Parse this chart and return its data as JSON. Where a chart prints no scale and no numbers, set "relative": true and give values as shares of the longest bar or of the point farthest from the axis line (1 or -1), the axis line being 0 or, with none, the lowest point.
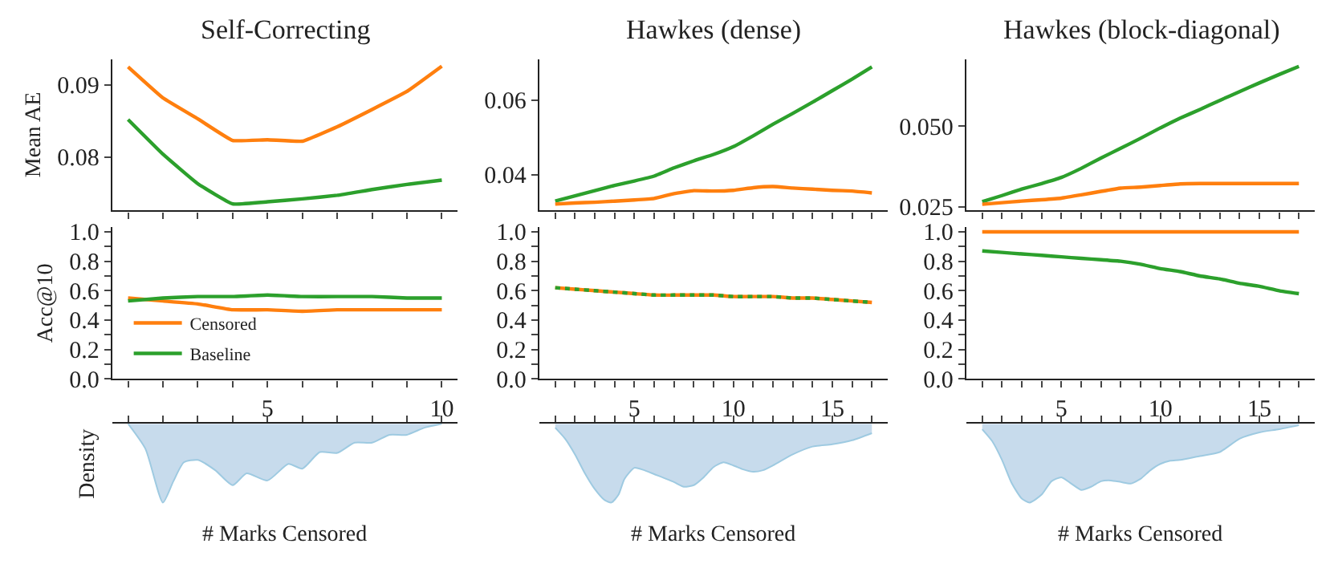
{
  "chart_data": [
    {
      "type": "line",
      "title": "Self-Correcting",
      "ylabel": "Mean AE",
      "x": [
        1,
        2,
        3,
        4,
        5,
        6,
        7,
        8,
        9,
        10
      ],
      "xlim": [
        0.55,
        10.45
      ],
      "xticks": [
        {
          "value": 1,
          "label": null
        },
        {
          "value": 2,
          "label": null
        },
        {
          "value": 3,
          "label": null
        },
        {
          "value": 4,
          "label": null
        },
        5,
        {
          "value": 6,
          "label": null
        },
        {
          "value": 7,
          "label": null
        },
        {
          "value": 8,
          "label": null
        },
        {
          "value": 9,
          "label": null
        },
        10
      ],
      "ylim": [
        0.0726,
        0.0936
      ],
      "yticks": [
        0.08,
        0.09
      ],
      "tick_labels": "y",
      "grid": false,
      "marker": "none",
      "series": [
        {
          "color": "#ff7f0e",
          "values": [
            0.0925,
            0.0882,
            0.0853,
            0.0823,
            0.0824,
            0.0822,
            0.0842,
            0.0866,
            0.0891,
            0.0926
          ]
        },
        {
          "color": "#2ca02c",
          "values": [
            0.0852,
            0.0804,
            0.0763,
            0.0735,
            0.0738,
            0.0742,
            0.0747,
            0.0755,
            0.0762,
            0.0768
          ]
        }
      ]
    },
    {
      "type": "line",
      "title": "Hawkes (dense)",
      "x": [
        1,
        2,
        3,
        4,
        5,
        6,
        7,
        8,
        9,
        10,
        11,
        12,
        13,
        14,
        15,
        16,
        17
      ],
      "xlim": [
        0.2,
        17.8
      ],
      "xticks": [
        {
          "value": 1,
          "label": null
        },
        {
          "value": 2,
          "label": null
        },
        {
          "value": 3,
          "label": null
        },
        {
          "value": 4,
          "label": null
        },
        5,
        {
          "value": 6,
          "label": null
        },
        {
          "value": 7,
          "label": null
        },
        {
          "value": 8,
          "label": null
        },
        {
          "value": 9,
          "label": null
        },
        10,
        {
          "value": 11,
          "label": null
        },
        {
          "value": 12,
          "label": null
        },
        {
          "value": 13,
          "label": null
        },
        {
          "value": 14,
          "label": null
        },
        15,
        {
          "value": 16,
          "label": null
        },
        {
          "value": 17,
          "label": null
        }
      ],
      "ylim": [
        0.0304,
        0.071
      ],
      "yticks": [
        0.04,
        0.06
      ],
      "tick_labels": "y",
      "grid": false,
      "marker": "none",
      "series": [
        {
          "color": "#2ca02c",
          "values": [
            0.0329,
            0.0343,
            0.0357,
            0.0371,
            0.0383,
            0.0396,
            0.0418,
            0.0437,
            0.0454,
            0.0475,
            0.0504,
            0.0535,
            0.0564,
            0.0594,
            0.0625,
            0.0656,
            0.0689
          ]
        },
        {
          "color": "#ff7f0e",
          "values": [
            0.0321,
            0.0324,
            0.0326,
            0.0329,
            0.0332,
            0.0336,
            0.0349,
            0.0357,
            0.0356,
            0.0358,
            0.0365,
            0.0368,
            0.0364,
            0.0361,
            0.0358,
            0.0356,
            0.0351
          ]
        }
      ]
    },
    {
      "type": "line",
      "title": "Hawkes (block-diagonal)",
      "x": [
        1,
        2,
        3,
        4,
        5,
        6,
        7,
        8,
        9,
        10,
        11,
        12,
        13,
        14,
        15,
        16,
        17
      ],
      "xlim": [
        0.2,
        17.8
      ],
      "xticks": [
        {
          "value": 1,
          "label": null
        },
        {
          "value": 2,
          "label": null
        },
        {
          "value": 3,
          "label": null
        },
        {
          "value": 4,
          "label": null
        },
        5,
        {
          "value": 6,
          "label": null
        },
        {
          "value": 7,
          "label": null
        },
        {
          "value": 8,
          "label": null
        },
        {
          "value": 9,
          "label": null
        },
        10,
        {
          "value": 11,
          "label": null
        },
        {
          "value": 12,
          "label": null
        },
        {
          "value": 13,
          "label": null
        },
        {
          "value": 14,
          "label": null
        },
        15,
        {
          "value": 16,
          "label": null
        },
        {
          "value": 17,
          "label": null
        }
      ],
      "ylim": [
        0.0239,
        0.0707
      ],
      "yticks": [
        {
          "value": 0.025,
          "label": "0.025"
        },
        {
          "value": 0.05,
          "label": "0.050"
        }
      ],
      "tick_labels": "y",
      "grid": false,
      "marker": "none",
      "series": [
        {
          "color": "#2ca02c",
          "values": [
            0.0266,
            0.0285,
            0.0305,
            0.0322,
            0.0341,
            0.0369,
            0.0401,
            0.0431,
            0.0462,
            0.0494,
            0.0524,
            0.0551,
            0.0579,
            0.0606,
            0.0633,
            0.0659,
            0.0684
          ]
        },
        {
          "color": "#ff7f0e",
          "values": [
            0.0258,
            0.0263,
            0.0268,
            0.0272,
            0.0277,
            0.0287,
            0.0298,
            0.0308,
            0.0311,
            0.0316,
            0.0321,
            0.0322,
            0.0322,
            0.0322,
            0.0322,
            0.0322,
            0.0322
          ]
        }
      ]
    },
    {
      "type": "line",
      "ylabel": "Acc@10",
      "x": [
        1,
        2,
        3,
        4,
        5,
        6,
        7,
        8,
        9,
        10
      ],
      "xlim": [
        0.55,
        10.45
      ],
      "xticks": [
        {
          "value": 1,
          "label": null
        },
        {
          "value": 2,
          "label": null
        },
        {
          "value": 3,
          "label": null
        },
        {
          "value": 4,
          "label": null
        },
        5,
        {
          "value": 6,
          "label": null
        },
        {
          "value": 7,
          "label": null
        },
        {
          "value": 8,
          "label": null
        },
        {
          "value": 9,
          "label": null
        },
        10
      ],
      "ylim": [
        0,
        1.03
      ],
      "yticks": [
        {
          "value": 0,
          "label": "0.0"
        },
        {
          "value": 0.1,
          "label": null
        },
        {
          "value": 0.2,
          "label": "0.2"
        },
        {
          "value": 0.3,
          "label": null
        },
        {
          "value": 0.4,
          "label": "0.4"
        },
        {
          "value": 0.5,
          "label": null
        },
        {
          "value": 0.6,
          "label": "0.6"
        },
        {
          "value": 0.7,
          "label": null
        },
        {
          "value": 0.8,
          "label": "0.8"
        },
        {
          "value": 0.9,
          "label": null
        },
        {
          "value": 1,
          "label": "1.0"
        }
      ],
      "grid": false,
      "marker": "none",
      "legend": "bottom left",
      "series": [
        {
          "name": "Censored",
          "color": "#ff7f0e",
          "values": [
            0.55,
            0.53,
            0.51,
            0.47,
            0.47,
            0.46,
            0.47,
            0.47,
            0.47,
            0.47
          ]
        },
        {
          "name": "Baseline",
          "color": "#2ca02c",
          "values": [
            0.53,
            0.55,
            0.56,
            0.56,
            0.57,
            0.56,
            0.56,
            0.56,
            0.55,
            0.55
          ]
        }
      ]
    },
    {
      "type": "line",
      "x": [
        1,
        2,
        3,
        4,
        5,
        6,
        7,
        8,
        9,
        10,
        11,
        12,
        13,
        14,
        15,
        16,
        17
      ],
      "xlim": [
        0.2,
        17.8
      ],
      "xticks": [
        {
          "value": 1,
          "label": null
        },
        {
          "value": 2,
          "label": null
        },
        {
          "value": 3,
          "label": null
        },
        {
          "value": 4,
          "label": null
        },
        5,
        {
          "value": 6,
          "label": null
        },
        {
          "value": 7,
          "label": null
        },
        {
          "value": 8,
          "label": null
        },
        {
          "value": 9,
          "label": null
        },
        10,
        {
          "value": 11,
          "label": null
        },
        {
          "value": 12,
          "label": null
        },
        {
          "value": 13,
          "label": null
        },
        {
          "value": 14,
          "label": null
        },
        15,
        {
          "value": 16,
          "label": null
        },
        {
          "value": 17,
          "label": null
        }
      ],
      "ylim": [
        0,
        1.03
      ],
      "yticks": [
        {
          "value": 0,
          "label": "0.0"
        },
        {
          "value": 0.1,
          "label": null
        },
        {
          "value": 0.2,
          "label": "0.2"
        },
        {
          "value": 0.3,
          "label": null
        },
        {
          "value": 0.4,
          "label": "0.4"
        },
        {
          "value": 0.5,
          "label": null
        },
        {
          "value": 0.6,
          "label": "0.6"
        },
        {
          "value": 0.7,
          "label": null
        },
        {
          "value": 0.8,
          "label": "0.8"
        },
        {
          "value": 0.9,
          "label": null
        },
        {
          "value": 1,
          "label": "1.0"
        }
      ],
      "grid": false,
      "marker": "none",
      "series": [
        {
          "color": "#ff7f0e",
          "line_style": "solid",
          "values": [
            0.62,
            0.61,
            0.6,
            0.59,
            0.58,
            0.57,
            0.57,
            0.57,
            0.57,
            0.56,
            0.56,
            0.56,
            0.55,
            0.55,
            0.54,
            0.53,
            0.52
          ]
        },
        {
          "color": "#2ca02c",
          "line_style": "dotted",
          "values": [
            0.62,
            0.61,
            0.6,
            0.59,
            0.58,
            0.57,
            0.57,
            0.57,
            0.57,
            0.56,
            0.56,
            0.56,
            0.55,
            0.55,
            0.54,
            0.53,
            0.52
          ]
        }
      ]
    },
    {
      "type": "line",
      "x": [
        1,
        2,
        3,
        4,
        5,
        6,
        7,
        8,
        9,
        10,
        11,
        12,
        13,
        14,
        15,
        16,
        17
      ],
      "xlim": [
        0.2,
        17.8
      ],
      "xticks": [
        {
          "value": 1,
          "label": null
        },
        {
          "value": 2,
          "label": null
        },
        {
          "value": 3,
          "label": null
        },
        {
          "value": 4,
          "label": null
        },
        5,
        {
          "value": 6,
          "label": null
        },
        {
          "value": 7,
          "label": null
        },
        {
          "value": 8,
          "label": null
        },
        {
          "value": 9,
          "label": null
        },
        10,
        {
          "value": 11,
          "label": null
        },
        {
          "value": 12,
          "label": null
        },
        {
          "value": 13,
          "label": null
        },
        {
          "value": 14,
          "label": null
        },
        15,
        {
          "value": 16,
          "label": null
        },
        {
          "value": 17,
          "label": null
        }
      ],
      "ylim": [
        0,
        1.03
      ],
      "yticks": [
        {
          "value": 0,
          "label": "0.0"
        },
        {
          "value": 0.1,
          "label": null
        },
        {
          "value": 0.2,
          "label": "0.2"
        },
        {
          "value": 0.3,
          "label": null
        },
        {
          "value": 0.4,
          "label": "0.4"
        },
        {
          "value": 0.5,
          "label": null
        },
        {
          "value": 0.6,
          "label": "0.6"
        },
        {
          "value": 0.7,
          "label": null
        },
        {
          "value": 0.8,
          "label": "0.8"
        },
        {
          "value": 0.9,
          "label": null
        },
        {
          "value": 1,
          "label": "1.0"
        }
      ],
      "grid": false,
      "marker": "none",
      "series": [
        {
          "color": "#ff7f0e",
          "values": [
            1,
            1,
            1,
            1,
            1,
            1,
            1,
            1,
            1,
            1,
            1,
            1,
            1,
            1,
            1,
            1,
            1
          ]
        },
        {
          "color": "#2ca02c",
          "values": [
            0.87,
            0.86,
            0.85,
            0.84,
            0.83,
            0.82,
            0.81,
            0.8,
            0.78,
            0.75,
            0.73,
            0.7,
            0.68,
            0.65,
            0.63,
            0.6,
            0.58
          ]
        }
      ]
    },
    {
      "type": "area",
      "relative": true,
      "ylabel": "Density",
      "xlabel": "# Marks Censored",
      "xlim": [
        0.55,
        10.45
      ],
      "xticks": [
        {
          "value": 1,
          "label": null
        },
        {
          "value": 2,
          "label": null
        },
        {
          "value": 3,
          "label": null
        },
        {
          "value": 4,
          "label": null
        },
        {
          "value": 5,
          "label": null
        },
        {
          "value": 6,
          "label": null
        },
        {
          "value": 7,
          "label": null
        },
        {
          "value": 8,
          "label": null
        },
        {
          "value": 9,
          "label": null
        },
        {
          "value": 10,
          "label": null
        }
      ],
      "tick_labels": false,
      "grid": false,
      "series": [
        {
          "color": "#c4d9eb",
          "x": [
            1,
            1.5,
            2,
            2.3,
            2.6,
            3,
            3.5,
            4,
            4.4,
            5,
            5.6,
            6,
            6.5,
            7,
            7.5,
            8,
            8.5,
            9,
            9.5,
            10
          ],
          "values": [
            0,
            -0.32,
            -1,
            -0.73,
            -0.49,
            -0.46,
            -0.59,
            -0.78,
            -0.63,
            -0.72,
            -0.51,
            -0.57,
            -0.36,
            -0.37,
            -0.24,
            -0.24,
            -0.14,
            -0.14,
            -0.05,
            0
          ]
        }
      ]
    },
    {
      "type": "area",
      "relative": true,
      "xlabel": "# Marks Censored",
      "xlim": [
        0.2,
        17.8
      ],
      "xticks": [
        {
          "value": 1,
          "label": null
        },
        {
          "value": 2,
          "label": null
        },
        {
          "value": 3,
          "label": null
        },
        {
          "value": 4,
          "label": null
        },
        {
          "value": 5,
          "label": null
        },
        {
          "value": 6,
          "label": null
        },
        {
          "value": 7,
          "label": null
        },
        {
          "value": 8,
          "label": null
        },
        {
          "value": 9,
          "label": null
        },
        {
          "value": 10,
          "label": null
        },
        {
          "value": 11,
          "label": null
        },
        {
          "value": 12,
          "label": null
        },
        {
          "value": 13,
          "label": null
        },
        {
          "value": 14,
          "label": null
        },
        {
          "value": 15,
          "label": null
        },
        {
          "value": 16,
          "label": null
        },
        {
          "value": 17,
          "label": null
        }
      ],
      "tick_labels": false,
      "grid": false,
      "series": [
        {
          "color": "#c4d9eb",
          "x": [
            1,
            1.5,
            2,
            2.5,
            3,
            3.5,
            3.84,
            4.2,
            4.5,
            5,
            5.5,
            6,
            7,
            7.5,
            8,
            8.5,
            9,
            9.5,
            10,
            10.5,
            11,
            11.5,
            12,
            13,
            14,
            15,
            16,
            17
          ],
          "values": [
            -0.05,
            -0.19,
            -0.39,
            -0.63,
            -0.83,
            -0.97,
            -1,
            -0.9,
            -0.7,
            -0.56,
            -0.59,
            -0.64,
            -0.74,
            -0.8,
            -0.78,
            -0.68,
            -0.55,
            -0.49,
            -0.53,
            -0.58,
            -0.61,
            -0.59,
            -0.53,
            -0.39,
            -0.29,
            -0.26,
            -0.21,
            -0.12
          ]
        }
      ]
    },
    {
      "type": "area",
      "relative": true,
      "xlabel": "# Marks Censored",
      "xlim": [
        0.2,
        17.8
      ],
      "xticks": [
        {
          "value": 1,
          "label": null
        },
        {
          "value": 2,
          "label": null
        },
        {
          "value": 3,
          "label": null
        },
        {
          "value": 4,
          "label": null
        },
        {
          "value": 5,
          "label": null
        },
        {
          "value": 6,
          "label": null
        },
        {
          "value": 7,
          "label": null
        },
        {
          "value": 8,
          "label": null
        },
        {
          "value": 9,
          "label": null
        },
        {
          "value": 10,
          "label": null
        },
        {
          "value": 11,
          "label": null
        },
        {
          "value": 12,
          "label": null
        },
        {
          "value": 13,
          "label": null
        },
        {
          "value": 14,
          "label": null
        },
        {
          "value": 15,
          "label": null
        },
        {
          "value": 16,
          "label": null
        },
        {
          "value": 17,
          "label": null
        }
      ],
      "tick_labels": false,
      "grid": false,
      "series": [
        {
          "color": "#c4d9eb",
          "x": [
            1,
            1.5,
            2,
            2.5,
            3,
            3.4,
            4,
            4.5,
            5,
            5.5,
            6,
            6.5,
            7,
            7.5,
            8,
            8.5,
            9,
            9.5,
            10,
            10.5,
            11,
            12,
            13,
            14,
            15,
            16,
            17
          ],
          "values": [
            -0.07,
            -0.22,
            -0.46,
            -0.76,
            -0.95,
            -1,
            -0.9,
            -0.73,
            -0.68,
            -0.76,
            -0.84,
            -0.8,
            -0.73,
            -0.72,
            -0.74,
            -0.76,
            -0.7,
            -0.59,
            -0.51,
            -0.47,
            -0.46,
            -0.41,
            -0.36,
            -0.19,
            -0.11,
            -0.07,
            -0.02
          ]
        }
      ]
    }
  ]
}
